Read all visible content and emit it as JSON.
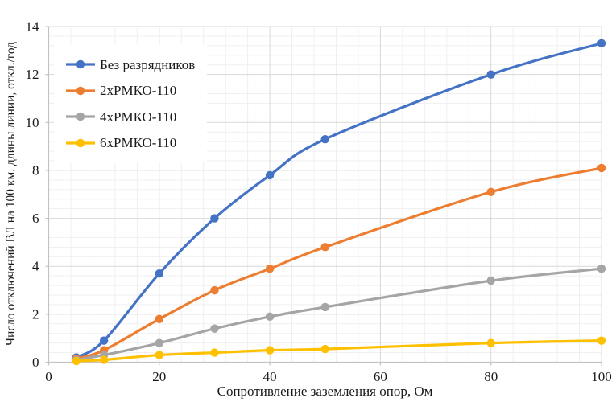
{
  "chart_data": {
    "type": "line",
    "title": "",
    "xlabel": "Сопротивление заземления опор, Ом",
    "ylabel": "Число отключений ВЛ на 100 км. длины линии, откл./год",
    "x": [
      5,
      10,
      20,
      30,
      40,
      50,
      80,
      100
    ],
    "xlim": [
      0,
      100
    ],
    "ylim": [
      0,
      14
    ],
    "x_major_ticks": [
      0,
      20,
      40,
      60,
      80,
      100
    ],
    "y_major_ticks": [
      0,
      2,
      4,
      6,
      8,
      10,
      12,
      14
    ],
    "x_minor_step": 4,
    "y_minor_step": 0.4,
    "grid": "major and minor gridlines, light gray",
    "legend_position": "inside upper-left",
    "marker": "circle",
    "line_style": "smooth",
    "series": [
      {
        "name": "Без разрядников",
        "color": "#4472C4",
        "values": [
          0.2,
          0.9,
          3.7,
          6.0,
          7.8,
          9.3,
          12.0,
          13.3
        ]
      },
      {
        "name": "2хРМКО-110",
        "color": "#ED7D31",
        "values": [
          0.15,
          0.5,
          1.8,
          3.0,
          3.9,
          4.8,
          7.1,
          8.1
        ]
      },
      {
        "name": "4хРМКО-110",
        "color": "#A5A5A5",
        "values": [
          0.1,
          0.3,
          0.8,
          1.4,
          1.9,
          2.3,
          3.4,
          3.9
        ]
      },
      {
        "name": "6хРМКО-110",
        "color": "#FFC000",
        "values": [
          0.05,
          0.1,
          0.3,
          0.4,
          0.5,
          0.55,
          0.8,
          0.9
        ]
      }
    ]
  },
  "colors": {
    "background": "#ffffff",
    "text": "#1a1a1a",
    "grid_major": "#d9d9d9",
    "grid_minor": "#efefef",
    "axis_line": "#c3c3c3"
  }
}
